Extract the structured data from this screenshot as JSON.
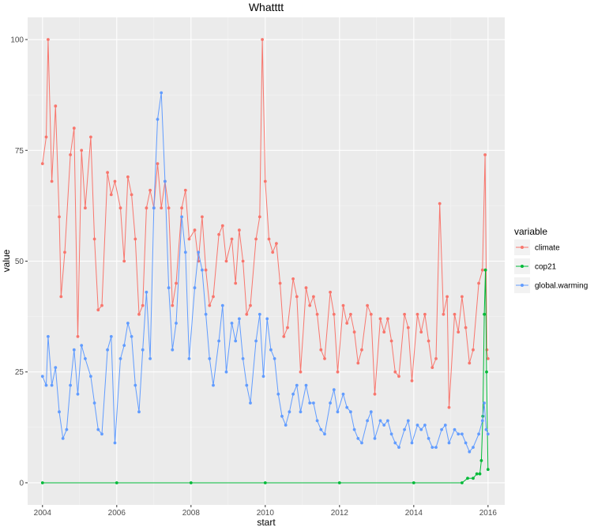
{
  "chart_data": {
    "type": "line",
    "title": "Whatttt",
    "xlabel": "start",
    "ylabel": "value",
    "xlim": [
      2003.6,
      2016.45
    ],
    "ylim": [
      -5,
      105
    ],
    "x_ticks": [
      2004,
      2006,
      2008,
      2010,
      2012,
      2014,
      2016
    ],
    "y_ticks": [
      0,
      25,
      50,
      75,
      100
    ],
    "grid": true,
    "legend": {
      "title": "variable",
      "placement": "right"
    },
    "series": [
      {
        "name": "climate",
        "color": "#F8766D",
        "points": [
          [
            2004.0,
            72
          ],
          [
            2004.1,
            78
          ],
          [
            2004.15,
            100
          ],
          [
            2004.25,
            68
          ],
          [
            2004.35,
            85
          ],
          [
            2004.45,
            60
          ],
          [
            2004.5,
            42
          ],
          [
            2004.6,
            52
          ],
          [
            2004.75,
            74
          ],
          [
            2004.85,
            80
          ],
          [
            2004.95,
            33
          ],
          [
            2005.05,
            75
          ],
          [
            2005.15,
            62
          ],
          [
            2005.3,
            78
          ],
          [
            2005.4,
            55
          ],
          [
            2005.5,
            39
          ],
          [
            2005.6,
            40
          ],
          [
            2005.75,
            70
          ],
          [
            2005.85,
            65
          ],
          [
            2005.95,
            68
          ],
          [
            2006.1,
            62
          ],
          [
            2006.2,
            50
          ],
          [
            2006.3,
            69
          ],
          [
            2006.4,
            65
          ],
          [
            2006.5,
            55
          ],
          [
            2006.6,
            38
          ],
          [
            2006.7,
            40
          ],
          [
            2006.8,
            62
          ],
          [
            2006.9,
            66
          ],
          [
            2007.0,
            62
          ],
          [
            2007.1,
            72
          ],
          [
            2007.2,
            62
          ],
          [
            2007.3,
            68
          ],
          [
            2007.4,
            62
          ],
          [
            2007.5,
            40
          ],
          [
            2007.6,
            45
          ],
          [
            2007.75,
            62
          ],
          [
            2007.85,
            66
          ],
          [
            2007.95,
            55
          ],
          [
            2008.1,
            57
          ],
          [
            2008.2,
            50
          ],
          [
            2008.3,
            60
          ],
          [
            2008.4,
            48
          ],
          [
            2008.5,
            40
          ],
          [
            2008.6,
            42
          ],
          [
            2008.75,
            56
          ],
          [
            2008.85,
            58
          ],
          [
            2008.95,
            50
          ],
          [
            2009.1,
            55
          ],
          [
            2009.2,
            45
          ],
          [
            2009.3,
            57
          ],
          [
            2009.4,
            50
          ],
          [
            2009.5,
            38
          ],
          [
            2009.6,
            40
          ],
          [
            2009.75,
            55
          ],
          [
            2009.85,
            60
          ],
          [
            2009.92,
            100
          ],
          [
            2010.0,
            68
          ],
          [
            2010.1,
            55
          ],
          [
            2010.2,
            52
          ],
          [
            2010.3,
            54
          ],
          [
            2010.4,
            45
          ],
          [
            2010.5,
            33
          ],
          [
            2010.6,
            35
          ],
          [
            2010.75,
            46
          ],
          [
            2010.85,
            42
          ],
          [
            2010.95,
            25
          ],
          [
            2011.1,
            44
          ],
          [
            2011.2,
            40
          ],
          [
            2011.3,
            42
          ],
          [
            2011.4,
            38
          ],
          [
            2011.5,
            30
          ],
          [
            2011.6,
            28
          ],
          [
            2011.75,
            43
          ],
          [
            2011.85,
            38
          ],
          [
            2011.95,
            25
          ],
          [
            2012.1,
            40
          ],
          [
            2012.2,
            36
          ],
          [
            2012.3,
            38
          ],
          [
            2012.4,
            34
          ],
          [
            2012.5,
            27
          ],
          [
            2012.6,
            30
          ],
          [
            2012.75,
            40
          ],
          [
            2012.85,
            38
          ],
          [
            2012.95,
            20
          ],
          [
            2013.1,
            37
          ],
          [
            2013.2,
            34
          ],
          [
            2013.3,
            37
          ],
          [
            2013.4,
            32
          ],
          [
            2013.5,
            25
          ],
          [
            2013.6,
            24
          ],
          [
            2013.75,
            38
          ],
          [
            2013.85,
            35
          ],
          [
            2013.95,
            23
          ],
          [
            2014.1,
            38
          ],
          [
            2014.2,
            34
          ],
          [
            2014.3,
            38
          ],
          [
            2014.4,
            32
          ],
          [
            2014.5,
            26
          ],
          [
            2014.6,
            28
          ],
          [
            2014.7,
            63
          ],
          [
            2014.8,
            38
          ],
          [
            2014.9,
            42
          ],
          [
            2014.95,
            17
          ],
          [
            2015.1,
            38
          ],
          [
            2015.2,
            34
          ],
          [
            2015.3,
            42
          ],
          [
            2015.4,
            35
          ],
          [
            2015.5,
            27
          ],
          [
            2015.6,
            30
          ],
          [
            2015.75,
            45
          ],
          [
            2015.85,
            48
          ],
          [
            2015.92,
            74
          ],
          [
            2015.97,
            30
          ],
          [
            2016.0,
            28
          ]
        ]
      },
      {
        "name": "cop21",
        "color": "#00BA38",
        "points": [
          [
            2004.0,
            0
          ],
          [
            2006.0,
            0
          ],
          [
            2008.0,
            0
          ],
          [
            2010.0,
            0
          ],
          [
            2012.0,
            0
          ],
          [
            2014.0,
            0
          ],
          [
            2015.3,
            0
          ],
          [
            2015.45,
            1
          ],
          [
            2015.6,
            1
          ],
          [
            2015.7,
            2
          ],
          [
            2015.78,
            2
          ],
          [
            2015.82,
            5
          ],
          [
            2015.86,
            15
          ],
          [
            2015.9,
            38
          ],
          [
            2015.93,
            48
          ],
          [
            2015.96,
            25
          ],
          [
            2016.0,
            3
          ]
        ]
      },
      {
        "name": "global.warming",
        "color": "#619CFF",
        "points": [
          [
            2004.0,
            24
          ],
          [
            2004.1,
            22
          ],
          [
            2004.15,
            33
          ],
          [
            2004.25,
            22
          ],
          [
            2004.35,
            26
          ],
          [
            2004.45,
            16
          ],
          [
            2004.55,
            10
          ],
          [
            2004.65,
            12
          ],
          [
            2004.75,
            22
          ],
          [
            2004.85,
            30
          ],
          [
            2004.95,
            20
          ],
          [
            2005.05,
            31
          ],
          [
            2005.15,
            28
          ],
          [
            2005.3,
            24
          ],
          [
            2005.4,
            18
          ],
          [
            2005.5,
            12
          ],
          [
            2005.6,
            11
          ],
          [
            2005.75,
            30
          ],
          [
            2005.85,
            33
          ],
          [
            2005.95,
            9
          ],
          [
            2006.1,
            28
          ],
          [
            2006.2,
            31
          ],
          [
            2006.3,
            36
          ],
          [
            2006.4,
            33
          ],
          [
            2006.5,
            22
          ],
          [
            2006.6,
            16
          ],
          [
            2006.7,
            30
          ],
          [
            2006.8,
            43
          ],
          [
            2006.9,
            28
          ],
          [
            2007.0,
            62
          ],
          [
            2007.1,
            82
          ],
          [
            2007.2,
            88
          ],
          [
            2007.3,
            68
          ],
          [
            2007.4,
            44
          ],
          [
            2007.5,
            30
          ],
          [
            2007.6,
            36
          ],
          [
            2007.75,
            60
          ],
          [
            2007.85,
            52
          ],
          [
            2007.95,
            28
          ],
          [
            2008.1,
            44
          ],
          [
            2008.2,
            52
          ],
          [
            2008.3,
            48
          ],
          [
            2008.4,
            38
          ],
          [
            2008.5,
            28
          ],
          [
            2008.6,
            22
          ],
          [
            2008.75,
            32
          ],
          [
            2008.85,
            40
          ],
          [
            2008.95,
            25
          ],
          [
            2009.1,
            36
          ],
          [
            2009.2,
            32
          ],
          [
            2009.3,
            37
          ],
          [
            2009.4,
            28
          ],
          [
            2009.5,
            22
          ],
          [
            2009.6,
            18
          ],
          [
            2009.75,
            32
          ],
          [
            2009.85,
            38
          ],
          [
            2009.95,
            24
          ],
          [
            2010.05,
            37
          ],
          [
            2010.15,
            30
          ],
          [
            2010.25,
            28
          ],
          [
            2010.35,
            20
          ],
          [
            2010.45,
            15
          ],
          [
            2010.55,
            13
          ],
          [
            2010.65,
            16
          ],
          [
            2010.75,
            20
          ],
          [
            2010.85,
            22
          ],
          [
            2010.95,
            16
          ],
          [
            2011.1,
            22
          ],
          [
            2011.2,
            18
          ],
          [
            2011.3,
            18
          ],
          [
            2011.4,
            14
          ],
          [
            2011.5,
            12
          ],
          [
            2011.6,
            11
          ],
          [
            2011.75,
            18
          ],
          [
            2011.85,
            21
          ],
          [
            2011.95,
            16
          ],
          [
            2012.1,
            20
          ],
          [
            2012.2,
            17
          ],
          [
            2012.3,
            16
          ],
          [
            2012.4,
            12
          ],
          [
            2012.5,
            10
          ],
          [
            2012.6,
            9
          ],
          [
            2012.75,
            14
          ],
          [
            2012.85,
            16
          ],
          [
            2012.95,
            10
          ],
          [
            2013.1,
            14
          ],
          [
            2013.2,
            13
          ],
          [
            2013.3,
            14
          ],
          [
            2013.4,
            11
          ],
          [
            2013.5,
            9
          ],
          [
            2013.6,
            8
          ],
          [
            2013.75,
            12
          ],
          [
            2013.85,
            14
          ],
          [
            2013.95,
            9
          ],
          [
            2014.1,
            13
          ],
          [
            2014.2,
            12
          ],
          [
            2014.3,
            13
          ],
          [
            2014.4,
            10
          ],
          [
            2014.5,
            8
          ],
          [
            2014.6,
            8
          ],
          [
            2014.75,
            12
          ],
          [
            2014.85,
            13
          ],
          [
            2014.95,
            9
          ],
          [
            2015.1,
            12
          ],
          [
            2015.2,
            11
          ],
          [
            2015.3,
            11
          ],
          [
            2015.4,
            9
          ],
          [
            2015.5,
            7
          ],
          [
            2015.6,
            8
          ],
          [
            2015.75,
            11
          ],
          [
            2015.85,
            14
          ],
          [
            2015.9,
            18
          ],
          [
            2015.95,
            12
          ],
          [
            2016.0,
            11
          ]
        ]
      }
    ]
  }
}
